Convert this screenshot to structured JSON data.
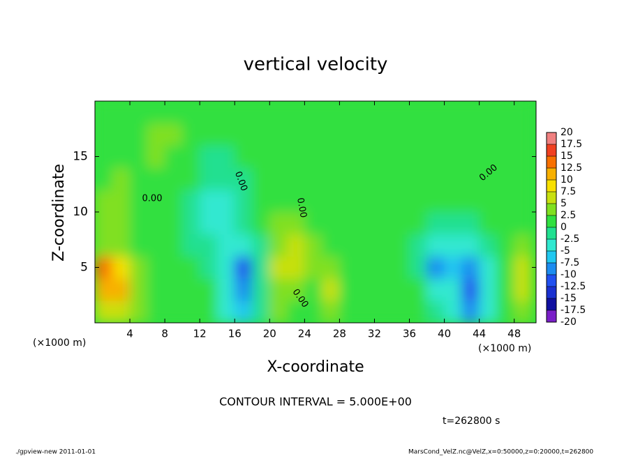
{
  "chart_data": {
    "type": "contour",
    "title": "vertical velocity",
    "x_label": "X-coordinate",
    "y_label": "Z-coordinate",
    "x_unit": "(×1000 m)",
    "y_unit": "(×1000 m)",
    "note": "CONTOUR INTERVAL = 5.000E+00",
    "time_label": "t=262800 s",
    "footer_left": "./gpview-new  2011-01-01",
    "footer_right": "MarsCond_VelZ.nc@VelZ,x=0:50000,z=0:20000,t=262800",
    "contour_labels": [
      "0.00",
      "0.00",
      "0.00",
      "0.00",
      "0.00"
    ],
    "xlim": [
      0,
      50.5
    ],
    "ylim": [
      0,
      20
    ],
    "xticks": [
      4,
      8,
      12,
      16,
      20,
      24,
      28,
      32,
      36,
      40,
      44,
      48
    ],
    "yticks": [
      5,
      10,
      15
    ],
    "x": [
      1,
      3,
      5,
      7,
      9,
      11,
      13,
      15,
      17,
      19,
      21,
      23,
      25,
      27,
      29,
      31,
      33,
      35,
      37,
      39,
      41,
      43,
      45,
      47,
      49
    ],
    "y": [
      1,
      3,
      5,
      7,
      9,
      11,
      13,
      15,
      17,
      19
    ],
    "z": [
      [
        5,
        6,
        3,
        2,
        1,
        1,
        0,
        -3,
        -6,
        -1,
        3,
        2,
        1,
        4,
        1,
        0,
        1,
        0,
        1,
        -2,
        -4,
        -10,
        -3,
        2,
        4
      ],
      [
        12,
        10,
        4,
        2,
        1,
        1,
        0,
        -3,
        -10,
        -2,
        4,
        4,
        2,
        5,
        2,
        0,
        1,
        0,
        0,
        -3,
        -5,
        -12,
        -4,
        2,
        5
      ],
      [
        14,
        8,
        3,
        2,
        1,
        0,
        -1,
        -5,
        -11,
        -2,
        5,
        6,
        3,
        3,
        1,
        0,
        1,
        1,
        -1,
        -9,
        -6,
        -8,
        -3,
        2,
        5
      ],
      [
        4,
        4,
        2,
        1,
        0,
        -1,
        -2,
        -4,
        -5,
        -1,
        4,
        5,
        3,
        2,
        1,
        0,
        1,
        1,
        -1,
        -4,
        -4,
        -3,
        -1,
        1,
        3
      ],
      [
        3,
        3,
        2,
        1,
        0,
        -2,
        -3,
        -3,
        -2,
        0,
        3,
        3,
        2,
        1,
        1,
        0,
        0,
        1,
        0,
        -2,
        -2,
        -1,
        0,
        1,
        2
      ],
      [
        3,
        3,
        1,
        1,
        0,
        -1,
        -3,
        -3,
        -2,
        0,
        2,
        2,
        1,
        1,
        1,
        1,
        1,
        1,
        1,
        0,
        0,
        0,
        1,
        1,
        2
      ],
      [
        2,
        3,
        2,
        2,
        1,
        0,
        -2,
        -2,
        -1,
        0,
        1,
        2,
        1,
        1,
        1,
        1,
        1,
        1,
        1,
        1,
        1,
        1,
        1,
        1,
        1
      ],
      [
        1,
        2,
        2,
        3,
        2,
        0,
        -1,
        -1,
        0,
        1,
        1,
        2,
        1,
        1,
        1,
        1,
        1,
        1,
        1,
        1,
        1,
        1,
        1,
        1,
        1
      ],
      [
        1,
        1,
        2,
        3,
        3,
        1,
        0,
        0,
        1,
        1,
        1,
        1,
        1,
        1,
        1,
        1,
        1,
        1,
        1,
        1,
        1,
        1,
        1,
        1,
        1
      ],
      [
        1,
        1,
        1,
        2,
        2,
        1,
        0,
        1,
        1,
        1,
        1,
        1,
        1,
        0,
        1,
        1,
        1,
        1,
        1,
        1,
        1,
        1,
        1,
        1,
        1
      ]
    ],
    "levels": [
      -20,
      -17.5,
      -15,
      -12.5,
      -10,
      -7.5,
      -5,
      -2.5,
      0,
      2.5,
      5,
      7.5,
      10,
      12.5,
      15,
      17.5,
      20
    ],
    "colors": [
      "#7a1fc8",
      "#1010a0",
      "#1a30d0",
      "#2050f0",
      "#1c8cf0",
      "#20c8f0",
      "#30e8d0",
      "#20e090",
      "#30e040",
      "#80e020",
      "#c8e010",
      "#f8e000",
      "#f8b000",
      "#f87000",
      "#f04020",
      "#f08080"
    ]
  }
}
